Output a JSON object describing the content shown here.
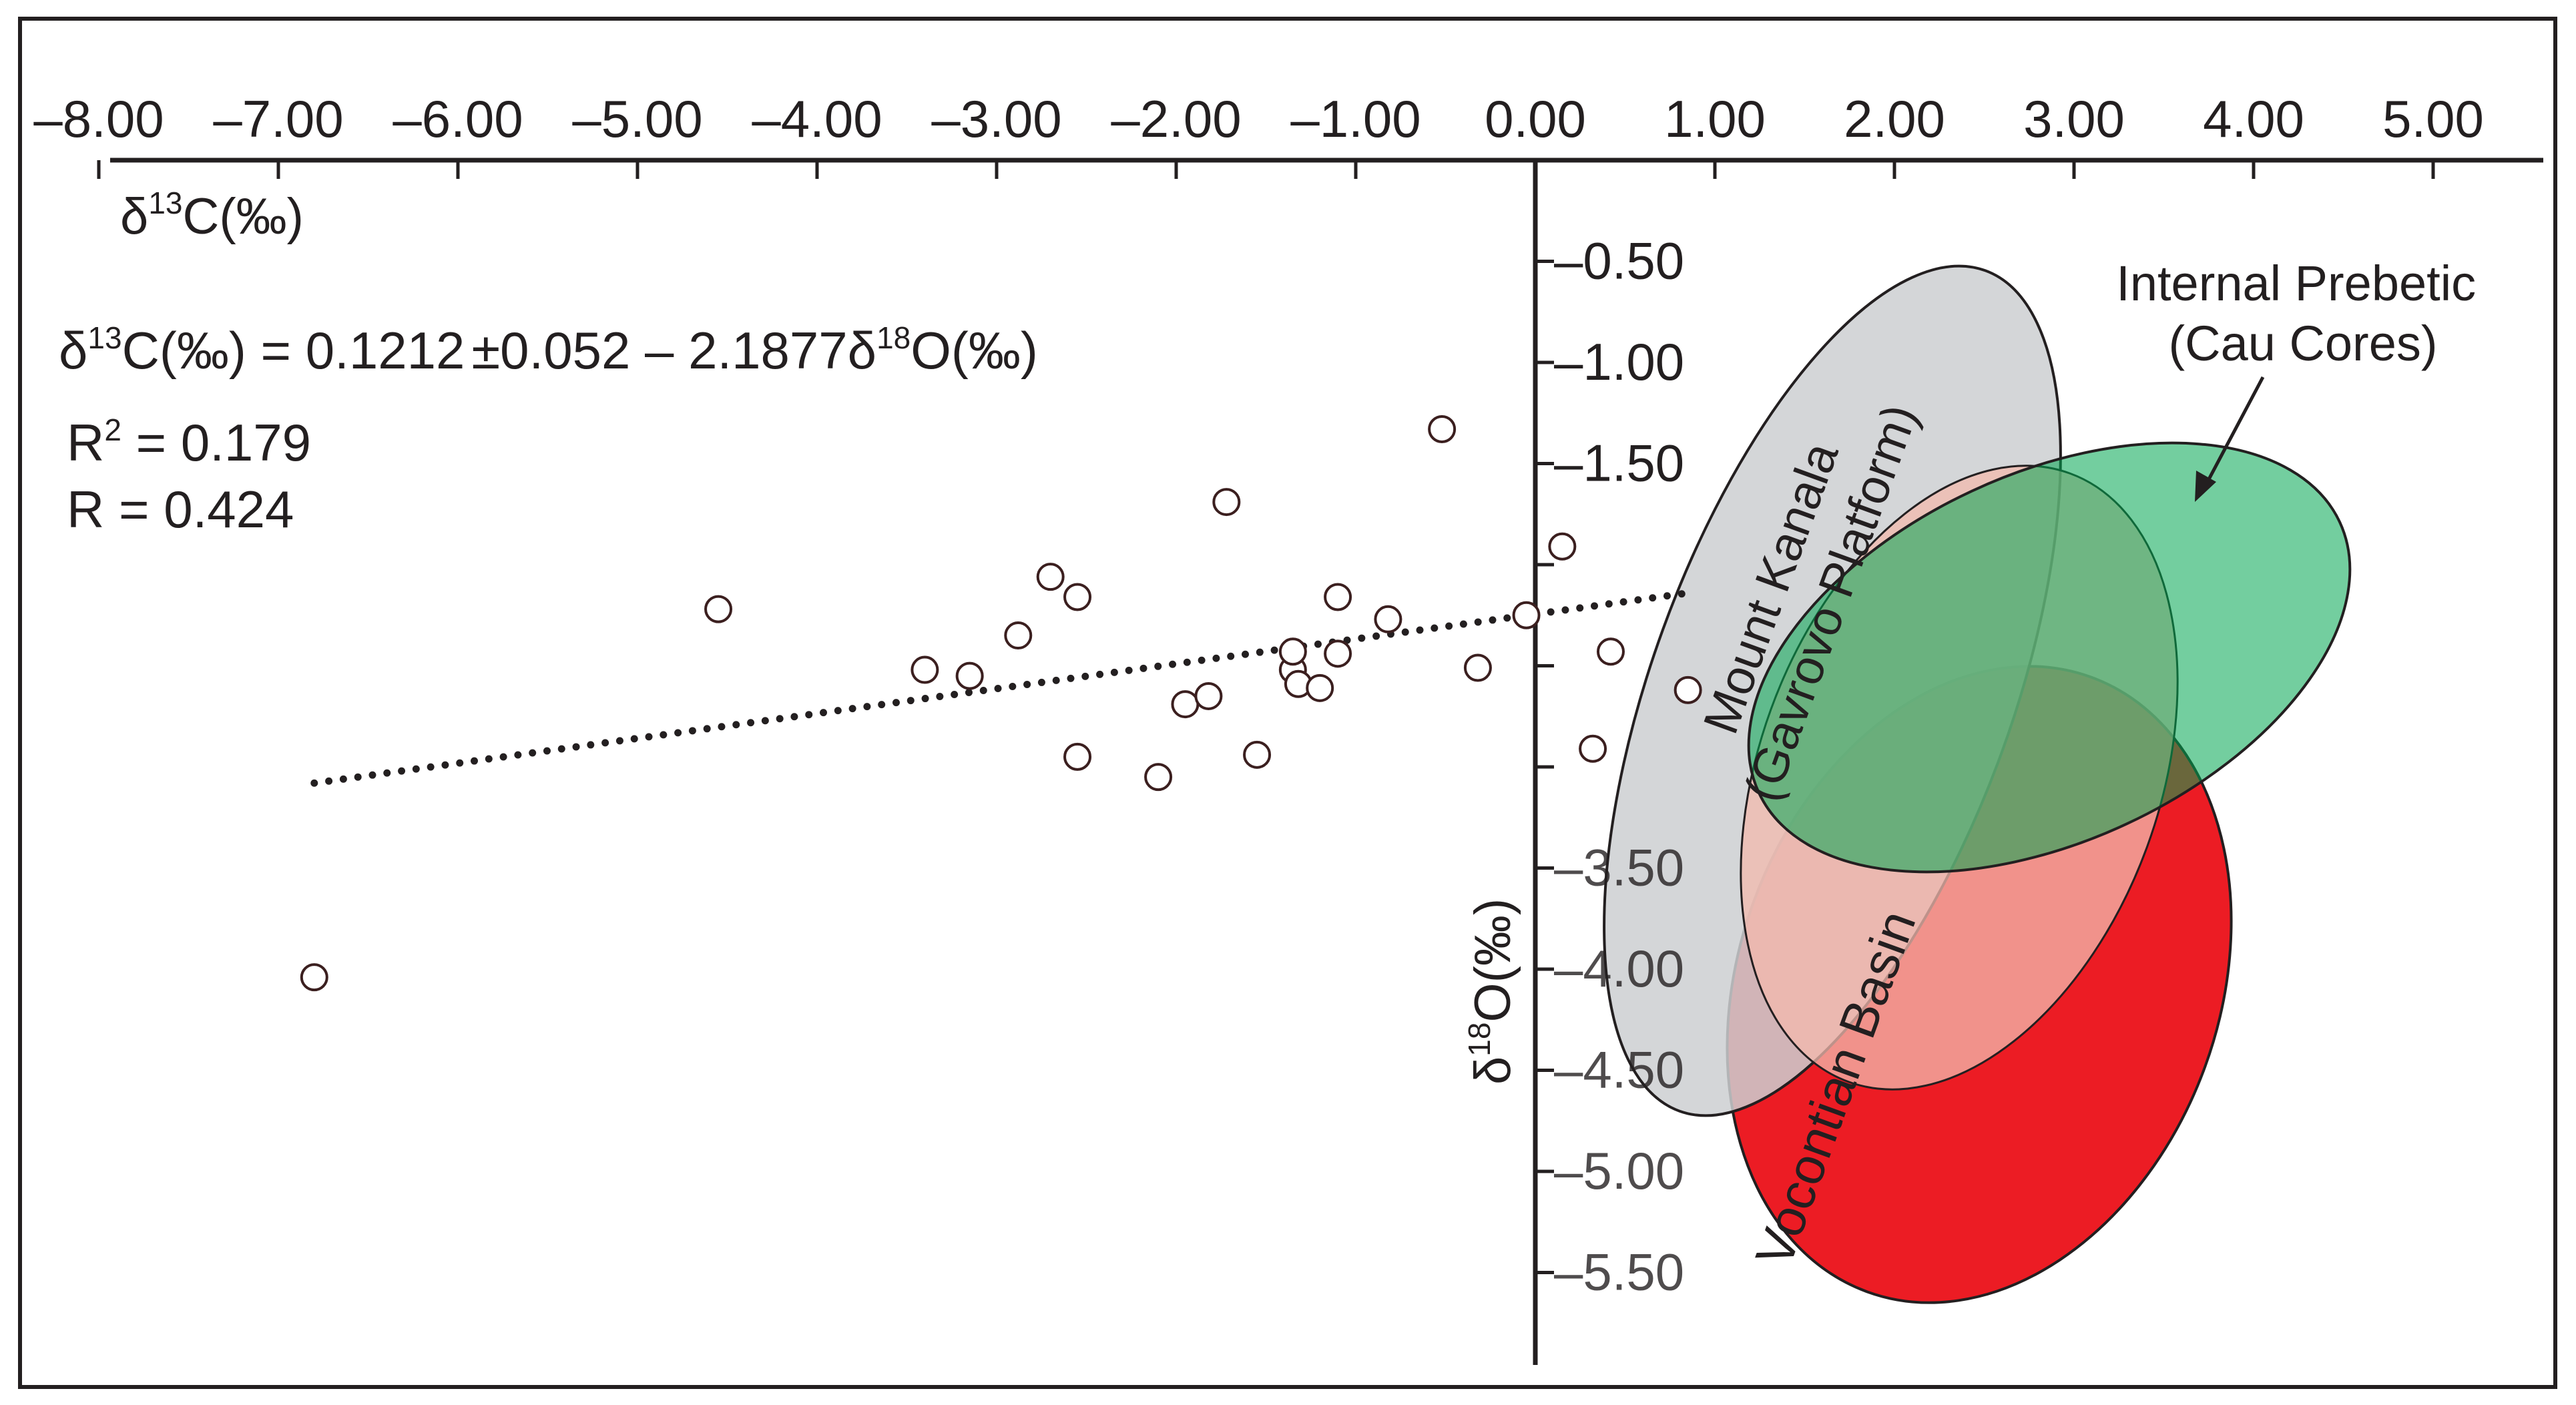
{
  "chart_data": {
    "type": "scatter",
    "title": "",
    "x_axis": {
      "label_prefix": "δ",
      "label_sup": "13",
      "label_suffix": "C(‰)",
      "range": [
        -8.0,
        5.5
      ],
      "ticks": [
        -8.0,
        -7.0,
        -6.0,
        -5.0,
        -4.0,
        -3.0,
        -2.0,
        -1.0,
        0.0,
        1.0,
        2.0,
        3.0,
        4.0,
        5.0
      ],
      "tick_labels": [
        "–8.00",
        "–7.00",
        "–6.00",
        "–5.00",
        "–4.00",
        "–3.00",
        "–2.00",
        "–1.00",
        "0.00",
        "1.00",
        "2.00",
        "3.00",
        "4.00",
        "5.00"
      ],
      "position": "top"
    },
    "y_axis": {
      "label_prefix": "δ",
      "label_sup": "18",
      "label_suffix": "O(‰)",
      "range": [
        0.0,
        -5.85
      ],
      "ticks": [
        -0.5,
        -1.0,
        -1.5,
        -2.0,
        -2.5,
        -3.0,
        -3.5,
        -4.0,
        -4.5,
        -5.0,
        -5.5
      ],
      "tick_labels": [
        "–0.50",
        "–1.00",
        "–1.50",
        "",
        "",
        "",
        "–3.50",
        "–4.00",
        "–4.50",
        "–5.00",
        "–5.50"
      ],
      "position": "center"
    },
    "equation": {
      "lhs_prefix": "δ",
      "lhs_sup": "13",
      "lhs_suffix": "C(‰) = 0.1212",
      "pm": "±",
      "middle": "0.052 – 2.1877",
      "rhs_prefix": "δ",
      "rhs_sup": "18",
      "rhs_suffix": "O(‰)"
    },
    "r2": {
      "prefix": "R",
      "sup": "2",
      "text": " = 0.179"
    },
    "r": {
      "text": "R =  0.424"
    },
    "points": [
      {
        "x": -6.8,
        "y": -4.04
      },
      {
        "x": -4.55,
        "y": -2.22
      },
      {
        "x": -3.4,
        "y": -2.52
      },
      {
        "x": -3.15,
        "y": -2.55
      },
      {
        "x": -2.88,
        "y": -2.35
      },
      {
        "x": -2.7,
        "y": -2.06
      },
      {
        "x": -2.55,
        "y": -2.16
      },
      {
        "x": -2.55,
        "y": -2.95
      },
      {
        "x": -2.1,
        "y": -3.05
      },
      {
        "x": -1.95,
        "y": -2.69
      },
      {
        "x": -1.82,
        "y": -2.65
      },
      {
        "x": -1.72,
        "y": -1.69
      },
      {
        "x": -1.55,
        "y": -2.94
      },
      {
        "x": -1.35,
        "y": -2.52
      },
      {
        "x": -1.35,
        "y": -2.43
      },
      {
        "x": -1.32,
        "y": -2.59
      },
      {
        "x": -1.2,
        "y": -2.61
      },
      {
        "x": -1.1,
        "y": -2.16
      },
      {
        "x": -1.1,
        "y": -2.44
      },
      {
        "x": -0.82,
        "y": -2.27
      },
      {
        "x": -0.52,
        "y": -1.33
      },
      {
        "x": -0.32,
        "y": -2.51
      },
      {
        "x": -0.05,
        "y": -2.25
      },
      {
        "x": 0.15,
        "y": -1.91
      },
      {
        "x": 0.32,
        "y": -2.91
      },
      {
        "x": 0.42,
        "y": -2.43
      },
      {
        "x": 0.85,
        "y": -2.62
      }
    ],
    "trendline": {
      "x_start": -6.8,
      "x_end": 0.85,
      "y_start": -3.08,
      "y_end": -2.14,
      "style": "dotted"
    },
    "fields": [
      {
        "name": "Mount Kanala (Gavrovo Platform)",
        "line1": "Mount Kanala",
        "line2": "(Gavrovo Platform)",
        "cx": 1.85,
        "cy": -2.84,
        "fill": "#cdcfd1",
        "opacity": 0.85
      },
      {
        "name": "Vocontian Basin",
        "line1": "Vocontian Basin",
        "cx": 2.35,
        "cy": -3.82,
        "fill": "#ec1c24",
        "opacity": 1.0
      },
      {
        "name": "overlap",
        "cx": 2.3,
        "cy": -3.05,
        "fill": "#f3b9ad",
        "opacity": 0.75
      },
      {
        "name": "Internal Prebetic (Cau Cores)",
        "line1": "Internal Prebetic",
        "line2": "(Cau Cores)",
        "cx": 2.6,
        "cy": -2.53,
        "fill": "#00a651",
        "opacity": 0.55
      }
    ]
  }
}
